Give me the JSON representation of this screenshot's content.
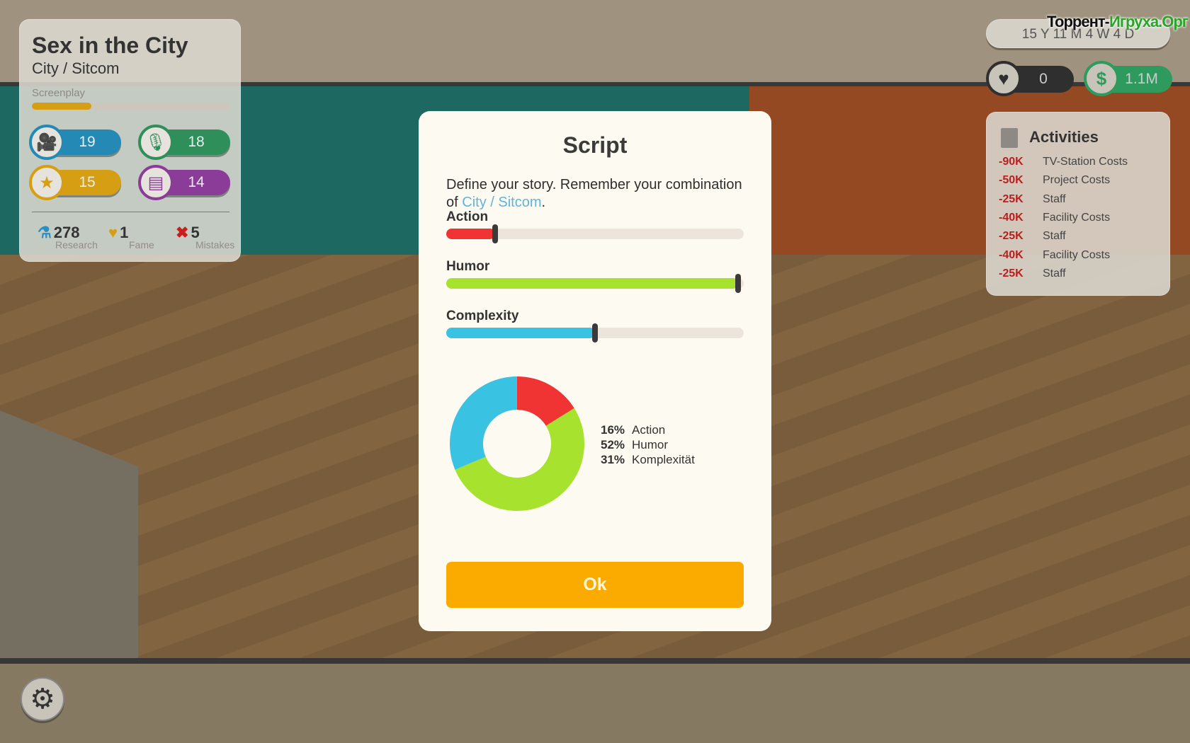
{
  "project": {
    "title": "Sex in the City",
    "genre": "City / Sitcom",
    "phase_label": "Screenplay",
    "phase_progress": 0.3,
    "skills": [
      {
        "icon": "camera-icon",
        "value": "19",
        "color": "#2489b4"
      },
      {
        "icon": "microphone-icon",
        "value": "18",
        "color": "#2f8f5b"
      },
      {
        "icon": "star-icon",
        "value": "15",
        "color": "#d69e12"
      },
      {
        "icon": "notebook-icon",
        "value": "14",
        "color": "#8a3c98"
      }
    ],
    "stats": [
      {
        "icon": "flask-icon",
        "value": "278",
        "label": "Research",
        "color": "#2a8fc0"
      },
      {
        "icon": "heart-icon",
        "value": "1",
        "label": "Fame",
        "color": "#d69e12"
      },
      {
        "icon": "x-icon",
        "value": "5",
        "label": "Mistakes",
        "color": "#cc1d1d"
      }
    ]
  },
  "date": "15 Y 11 M 4 W 4 D",
  "fans": "0",
  "money": "1.1M",
  "watermark": {
    "a": "Торрент-",
    "b": "Игруха.Орг"
  },
  "activities": {
    "title": "Activities",
    "items": [
      {
        "amount": "-90K",
        "label": "TV-Station Costs"
      },
      {
        "amount": "-50K",
        "label": "Project Costs"
      },
      {
        "amount": "-25K",
        "label": "Staff"
      },
      {
        "amount": "-40K",
        "label": "Facility Costs"
      },
      {
        "amount": "-25K",
        "label": "Staff"
      },
      {
        "amount": "-40K",
        "label": "Facility Costs"
      },
      {
        "amount": "-25K",
        "label": "Staff"
      }
    ]
  },
  "dialog": {
    "title": "Script",
    "desc_prefix": "Define your story. Remember your combination of ",
    "desc_highlight": "City / Sitcom",
    "desc_suffix": ".",
    "sliders": [
      {
        "label": "Action",
        "value": 0.165,
        "color": "#f03434"
      },
      {
        "label": "Humor",
        "value": 0.98,
        "color": "#a6e22e"
      },
      {
        "label": "Complexity",
        "value": 0.5,
        "color": "#3ac2e3"
      }
    ],
    "ok_label": "Ok"
  },
  "chart_data": {
    "type": "pie",
    "donut": true,
    "slices": [
      {
        "label": "Action",
        "pct_label": "16%",
        "value": 16,
        "color": "#f03434"
      },
      {
        "label": "Humor",
        "pct_label": "52%",
        "value": 52,
        "color": "#a6e22e"
      },
      {
        "label": "Komplexität",
        "pct_label": "31%",
        "value": 31,
        "color": "#3ac2e3"
      }
    ]
  }
}
